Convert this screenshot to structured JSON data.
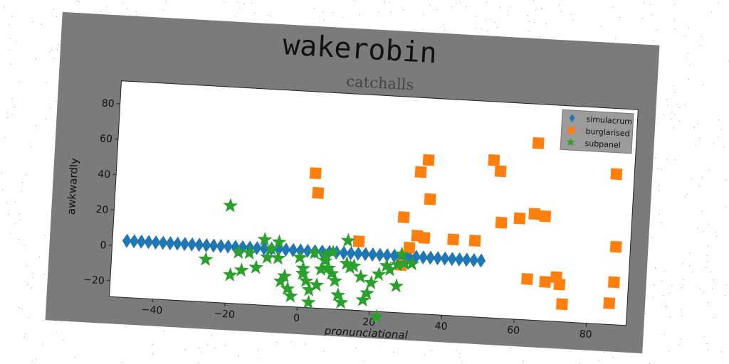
{
  "suptitle": "wakerobin",
  "chart_data": {
    "type": "scatter",
    "title": "catchalls",
    "xlabel": "pronunciational",
    "ylabel": "awkwardly",
    "xlim": [
      -52,
      91
    ],
    "ylim": [
      -29,
      93
    ],
    "xticks": [
      -40,
      -20,
      0,
      20,
      40,
      60,
      80
    ],
    "yticks": [
      -20,
      0,
      20,
      40,
      60,
      80
    ],
    "grid": false,
    "legend_position": "top-right",
    "series": [
      {
        "name": "simulacrum",
        "marker": "diamond",
        "color": "#1f77b4",
        "points": [
          [
            -48,
            3
          ],
          [
            -46,
            3
          ],
          [
            -44,
            3
          ],
          [
            -42,
            3
          ],
          [
            -40,
            3
          ],
          [
            -38,
            3
          ],
          [
            -36,
            3
          ],
          [
            -34,
            3
          ],
          [
            -32,
            3
          ],
          [
            -30,
            3
          ],
          [
            -28,
            3
          ],
          [
            -26,
            3
          ],
          [
            -24,
            3
          ],
          [
            -22,
            3
          ],
          [
            -20,
            3
          ],
          [
            -18,
            3
          ],
          [
            -16,
            3
          ],
          [
            -14,
            3
          ],
          [
            -12,
            3
          ],
          [
            -10,
            3
          ],
          [
            -8,
            3
          ],
          [
            -6,
            3
          ],
          [
            -4,
            3
          ],
          [
            -2,
            3
          ],
          [
            0,
            3
          ],
          [
            2,
            3
          ],
          [
            4,
            3
          ],
          [
            6,
            3
          ],
          [
            8,
            3
          ],
          [
            10,
            3
          ],
          [
            12,
            3
          ],
          [
            14,
            3
          ],
          [
            16,
            3
          ],
          [
            18,
            3
          ],
          [
            20,
            3
          ],
          [
            22,
            3
          ],
          [
            24,
            3
          ],
          [
            26,
            3
          ],
          [
            28,
            3
          ],
          [
            30,
            3
          ],
          [
            32,
            3
          ],
          [
            34,
            3
          ],
          [
            36,
            3
          ],
          [
            38,
            3
          ],
          [
            40,
            3
          ],
          [
            42,
            3
          ],
          [
            44,
            3
          ],
          [
            46,
            3
          ],
          [
            48,
            3
          ],
          [
            50,
            3
          ]
        ]
      },
      {
        "name": "burglarised",
        "marker": "square",
        "color": "#ff7f0e",
        "points": [
          [
            3,
            47
          ],
          [
            4,
            36
          ],
          [
            16,
            10
          ],
          [
            28,
            -2
          ],
          [
            28,
            25
          ],
          [
            30,
            8
          ],
          [
            32,
            51
          ],
          [
            34,
            58
          ],
          [
            32,
            15
          ],
          [
            34,
            14
          ],
          [
            35,
            36
          ],
          [
            42,
            14
          ],
          [
            48,
            14
          ],
          [
            52,
            60
          ],
          [
            54,
            54
          ],
          [
            55,
            25
          ],
          [
            60,
            28
          ],
          [
            63,
            -6
          ],
          [
            64,
            31
          ],
          [
            64,
            71
          ],
          [
            67,
            30
          ],
          [
            68,
            -7
          ],
          [
            71,
            -4
          ],
          [
            72,
            -8
          ],
          [
            73,
            -19
          ],
          [
            86,
            -17
          ],
          [
            86,
            56
          ],
          [
            87,
            -5
          ],
          [
            87,
            15
          ]
        ]
      },
      {
        "name": "subpanel",
        "marker": "star",
        "color": "#2ca02c",
        "points": [
          [
            -20,
            26
          ],
          [
            -26,
            -5
          ],
          [
            -19,
            -13
          ],
          [
            -16,
            -10
          ],
          [
            -14,
            0
          ],
          [
            -12,
            -8
          ],
          [
            -10,
            8
          ],
          [
            -8,
            3
          ],
          [
            -6,
            -2
          ],
          [
            -5,
            -15
          ],
          [
            -4,
            -12
          ],
          [
            -3,
            -19
          ],
          [
            -2,
            -23
          ],
          [
            0,
            -1
          ],
          [
            1,
            -7
          ],
          [
            1,
            -10
          ],
          [
            2,
            -14
          ],
          [
            3,
            -19
          ],
          [
            3,
            -26
          ],
          [
            4,
            2
          ],
          [
            5,
            -16
          ],
          [
            6,
            -7
          ],
          [
            7,
            -2
          ],
          [
            7,
            1
          ],
          [
            8,
            -6
          ],
          [
            9,
            -9
          ],
          [
            9,
            3
          ],
          [
            10,
            -13
          ],
          [
            11,
            -21
          ],
          [
            12,
            -25
          ],
          [
            13,
            -3
          ],
          [
            13,
            10
          ],
          [
            14,
            -5
          ],
          [
            15,
            -4
          ],
          [
            18,
            -23
          ],
          [
            19,
            -19
          ],
          [
            20,
            -13
          ],
          [
            22,
            -8
          ],
          [
            24,
            -3
          ],
          [
            27,
            -2
          ],
          [
            27,
            -14
          ],
          [
            28,
            4
          ],
          [
            29,
            -1
          ],
          [
            31,
            -1
          ],
          [
            22,
            -32
          ],
          [
            -17,
            0
          ],
          [
            -9,
            -2
          ],
          [
            -6,
            7
          ],
          [
            17,
            -10
          ],
          [
            25,
            -5
          ]
        ]
      }
    ]
  }
}
